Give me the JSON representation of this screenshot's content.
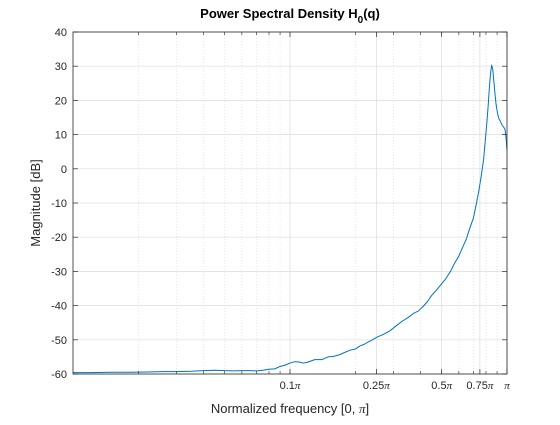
{
  "chart_data": {
    "type": "line",
    "title_main": "Power Spectral Density H",
    "title_sub": "0",
    "title_end": "(q)",
    "xlabel_main": "Normalized frequency [0, ",
    "xlabel_pi": "π",
    "xlabel_end": "]",
    "ylabel": "Magnitude [dB]",
    "xscale": "log",
    "xlim": [
      0.01,
      1.0
    ],
    "ylim": [
      -60,
      40
    ],
    "grid": true,
    "line_color": "#0072bd",
    "yticks": [
      {
        "value": -60,
        "label": "-60"
      },
      {
        "value": -50,
        "label": "-50"
      },
      {
        "value": -40,
        "label": "-40"
      },
      {
        "value": -30,
        "label": "-30"
      },
      {
        "value": -20,
        "label": "-20"
      },
      {
        "value": -10,
        "label": "-10"
      },
      {
        "value": 0,
        "label": "0"
      },
      {
        "value": 10,
        "label": "10"
      },
      {
        "value": 20,
        "label": "20"
      },
      {
        "value": 30,
        "label": "30"
      },
      {
        "value": 40,
        "label": "40"
      }
    ],
    "xticks": [
      {
        "value": 0.1,
        "label": "0.1"
      },
      {
        "value": 0.25,
        "label": "0.25"
      },
      {
        "value": 0.5,
        "label": "0.5"
      },
      {
        "value": 0.75,
        "label": "0.75"
      },
      {
        "value": 1.0,
        "label": ""
      }
    ],
    "x_unit_symbol": "π",
    "series": [
      {
        "x": [
          0.01,
          0.012,
          0.015,
          0.018,
          0.022,
          0.026,
          0.03,
          0.035,
          0.04,
          0.045,
          0.05,
          0.055,
          0.06,
          0.065,
          0.07,
          0.075,
          0.08,
          0.085,
          0.09,
          0.095,
          0.1,
          0.105,
          0.11,
          0.115,
          0.12,
          0.125,
          0.13,
          0.14,
          0.15,
          0.16,
          0.17,
          0.18,
          0.19,
          0.2,
          0.21,
          0.22,
          0.23,
          0.24,
          0.25,
          0.27,
          0.29,
          0.31,
          0.33,
          0.35,
          0.37,
          0.39,
          0.41,
          0.43,
          0.45,
          0.47,
          0.5,
          0.52,
          0.55,
          0.57,
          0.6,
          0.62,
          0.65,
          0.67,
          0.7,
          0.72,
          0.74,
          0.76,
          0.78,
          0.8,
          0.81,
          0.82,
          0.83,
          0.84,
          0.85,
          0.86,
          0.87,
          0.88,
          0.89,
          0.9,
          0.91,
          0.92,
          0.93,
          0.94,
          0.95,
          0.96,
          0.97,
          0.98,
          0.99,
          1.0
        ],
        "y": [
          -59.6,
          -59.6,
          -59.5,
          -59.5,
          -59.4,
          -59.3,
          -59.3,
          -59.2,
          -59.0,
          -58.9,
          -59.0,
          -59.1,
          -59.0,
          -59.0,
          -59.1,
          -58.9,
          -58.6,
          -58.5,
          -57.8,
          -57.4,
          -56.8,
          -56.4,
          -56.5,
          -56.8,
          -56.6,
          -56.2,
          -55.8,
          -55.8,
          -55.0,
          -54.8,
          -54.3,
          -53.6,
          -53.0,
          -52.7,
          -51.8,
          -51.3,
          -50.6,
          -50.0,
          -49.3,
          -48.4,
          -47.3,
          -45.8,
          -44.5,
          -43.5,
          -42.3,
          -41.6,
          -40.3,
          -38.8,
          -37.0,
          -35.7,
          -33.6,
          -32.3,
          -29.9,
          -27.9,
          -25.5,
          -23.4,
          -20.5,
          -17.8,
          -14.4,
          -10.7,
          -6.8,
          -2.3,
          2.7,
          10.5,
          14.5,
          19.0,
          24.0,
          28.0,
          30.3,
          29.0,
          25.5,
          22.0,
          19.0,
          17.0,
          15.5,
          14.5,
          14.0,
          13.3,
          12.8,
          12.4,
          12.0,
          11.4,
          9.0,
          5.5
        ]
      }
    ]
  }
}
